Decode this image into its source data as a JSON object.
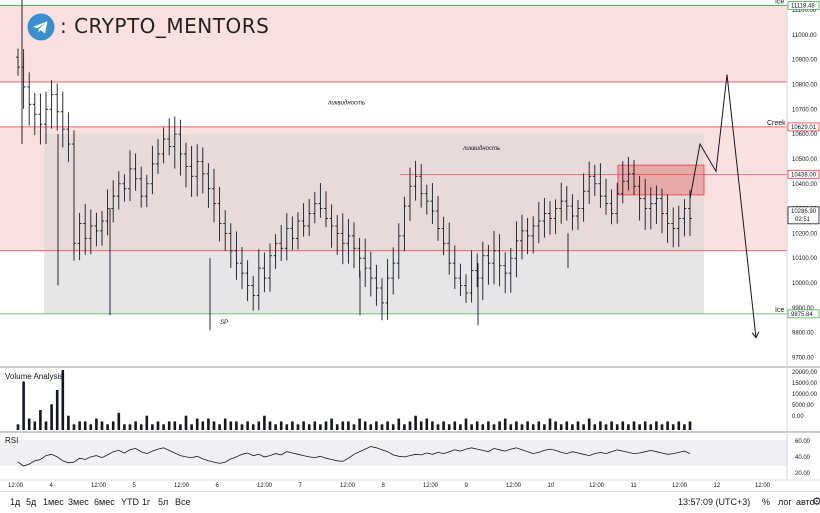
{
  "brand": {
    "name": ": CRYPTO_MENTORS",
    "logo_icon": "telegram-icon"
  },
  "colors": {
    "bull": "#131722",
    "supply_fill": "#fbe0e0",
    "zone_fill": "#e8d5d5",
    "range_fill": "#e6e6e6",
    "level_line": "#f23645",
    "ice_line": "#4caf50",
    "projection": "#131722"
  },
  "chart_data": {
    "type": "ohlc",
    "title": "",
    "ylim": [
      9650,
      11200
    ],
    "yticks": [
      9700,
      9800,
      9900,
      10000,
      10100,
      10200,
      10300,
      10400,
      10500,
      10600,
      10700,
      10800,
      10900,
      11000,
      11100
    ],
    "ytick_labels": [
      "9700.00",
      "9800.00",
      "9900.00",
      "10000.00",
      "10100.00",
      "10200.00",
      "10300.00",
      "10400.00",
      "10500.00",
      "10600.00",
      "10700.00",
      "10800.00",
      "10900.00",
      "11000.00",
      "11100.00"
    ],
    "xticks": [
      "12:00",
      "4",
      "12:00",
      "5",
      "12:00",
      "6",
      "12:00",
      "7",
      "12:00",
      "8",
      "12:00",
      "9",
      "12:00",
      "10",
      "12:00",
      "11",
      "12:00",
      "12",
      "12:00"
    ],
    "closes": [
      10870,
      10790,
      10720,
      10680,
      10640,
      10700,
      10760,
      10690,
      10620,
      10560,
      10160,
      10240,
      10180,
      10230,
      10210,
      10250,
      10300,
      10350,
      10400,
      10380,
      10460,
      10420,
      10350,
      10400,
      10480,
      10520,
      10580,
      10550,
      10600,
      10520,
      10470,
      10430,
      10490,
      10440,
      10380,
      10320,
      10240,
      10200,
      10130,
      10080,
      10040,
      9990,
      9950,
      10060,
      10020,
      10110,
      10160,
      10140,
      10220,
      10180,
      10250,
      10230,
      10280,
      10320,
      10300,
      10260,
      10230,
      10200,
      10160,
      10190,
      10140,
      10100,
      10060,
      10020,
      9980,
      9920,
      10020,
      10080,
      10190,
      10310,
      10390,
      10430,
      10360,
      10330,
      10290,
      10220,
      10160,
      10080,
      10020,
      9990,
      9960,
      10050,
      10020,
      10110,
      10080,
      10130,
      10070,
      10040,
      10100,
      10170,
      10210,
      10190,
      10230,
      10250,
      10280,
      10260,
      10300,
      10330,
      10310,
      10270,
      10300,
      10370,
      10430,
      10400,
      10350,
      10320,
      10280,
      10360,
      10410,
      10440,
      10390,
      10340,
      10300,
      10320,
      10340,
      10280,
      10240,
      10220,
      10260,
      10300,
      10260
    ],
    "volume": [
      2,
      17,
      4,
      3,
      7,
      3,
      9,
      14,
      21,
      5,
      2,
      3,
      3,
      2,
      4,
      3,
      2,
      3,
      6,
      2,
      2,
      3,
      2,
      5,
      2,
      3,
      2,
      3,
      3,
      2,
      5,
      2,
      4,
      3,
      4,
      3,
      2,
      4,
      3,
      3,
      2,
      3,
      2,
      3,
      5,
      3,
      2,
      3,
      2,
      3,
      2,
      3,
      2,
      3,
      2,
      3,
      4,
      2,
      3,
      3,
      2,
      4,
      3,
      2,
      3,
      2,
      3,
      2,
      4,
      2,
      3,
      5,
      3,
      4,
      3,
      2,
      3,
      2,
      3,
      2,
      4,
      2,
      3,
      2,
      3,
      2,
      3,
      4,
      2,
      3,
      2,
      3,
      2,
      3,
      2,
      4,
      3,
      2,
      3,
      2,
      3,
      2,
      4,
      2,
      3,
      2,
      3,
      2,
      3,
      2,
      3,
      2,
      3,
      2,
      3,
      2,
      3,
      2,
      3,
      2,
      3
    ],
    "rsi": [
      36,
      30,
      33,
      38,
      40,
      46,
      48,
      44,
      38,
      35,
      36,
      42,
      40,
      44,
      46,
      43,
      47,
      52,
      54,
      50,
      55,
      57,
      52,
      49,
      53,
      56,
      58,
      54,
      50,
      46,
      44,
      43,
      45,
      41,
      38,
      36,
      34,
      36,
      41,
      44,
      48,
      50,
      46,
      48,
      44,
      46,
      49,
      47,
      52,
      50,
      48,
      46,
      44,
      43,
      45,
      42,
      40,
      38,
      37,
      42,
      48,
      52,
      56,
      60,
      58,
      55,
      52,
      47,
      45,
      44,
      46,
      48,
      47,
      50,
      48,
      51,
      49,
      52,
      55,
      53,
      56,
      58,
      56,
      54,
      52,
      57,
      55,
      53,
      56,
      58,
      55,
      52,
      49,
      51,
      54,
      56,
      54,
      51,
      49,
      52,
      50,
      48,
      46,
      49,
      51,
      49,
      52,
      55,
      53,
      51,
      49,
      50,
      52,
      54,
      52,
      50,
      48,
      49,
      51,
      53,
      49
    ],
    "levels": [
      {
        "price": 11118.48,
        "label": "11118.48",
        "kind": "ice"
      },
      {
        "price": 10629.01,
        "label": "10629.01",
        "kind": "resistance"
      },
      {
        "price": 10438.0,
        "label": "10438.00",
        "kind": "resistance"
      },
      {
        "price": 9875.84,
        "label": "9875.84",
        "kind": "ice"
      }
    ],
    "current_price": {
      "value": 10286.9,
      "label": "10286.90",
      "countdown": "02:51"
    },
    "volume_ticks": [
      "20000.00",
      "15000.00",
      "10000.00",
      "5000.00",
      "0.00"
    ],
    "rsi_ticks": [
      "60.00",
      "40.00",
      "20.00"
    ],
    "annotations": [
      {
        "text": "Ice",
        "where": "top level right"
      },
      {
        "text": "Creek",
        "where": "upper band right"
      },
      {
        "text": "Ice",
        "where": "bottom level right"
      },
      {
        "text": "ликвидность",
        "where": "upper zone"
      },
      {
        "text": "ликвидность",
        "where": "middle zone"
      },
      {
        "text": "SP",
        "where": "below spring low"
      }
    ]
  },
  "panels": {
    "volume_title": "Volume Analysis",
    "rsi_title": "RSI"
  },
  "toolbar": {
    "timeframes": [
      "1д",
      "5д",
      "1мес",
      "3мес",
      "6мес",
      "YTD",
      "1г",
      "5л",
      "Все"
    ],
    "clock": "13:57:09 (UTC+3)",
    "percent": "%",
    "log": "лог",
    "auto": "авто",
    "settings_icon": "gear-icon"
  }
}
